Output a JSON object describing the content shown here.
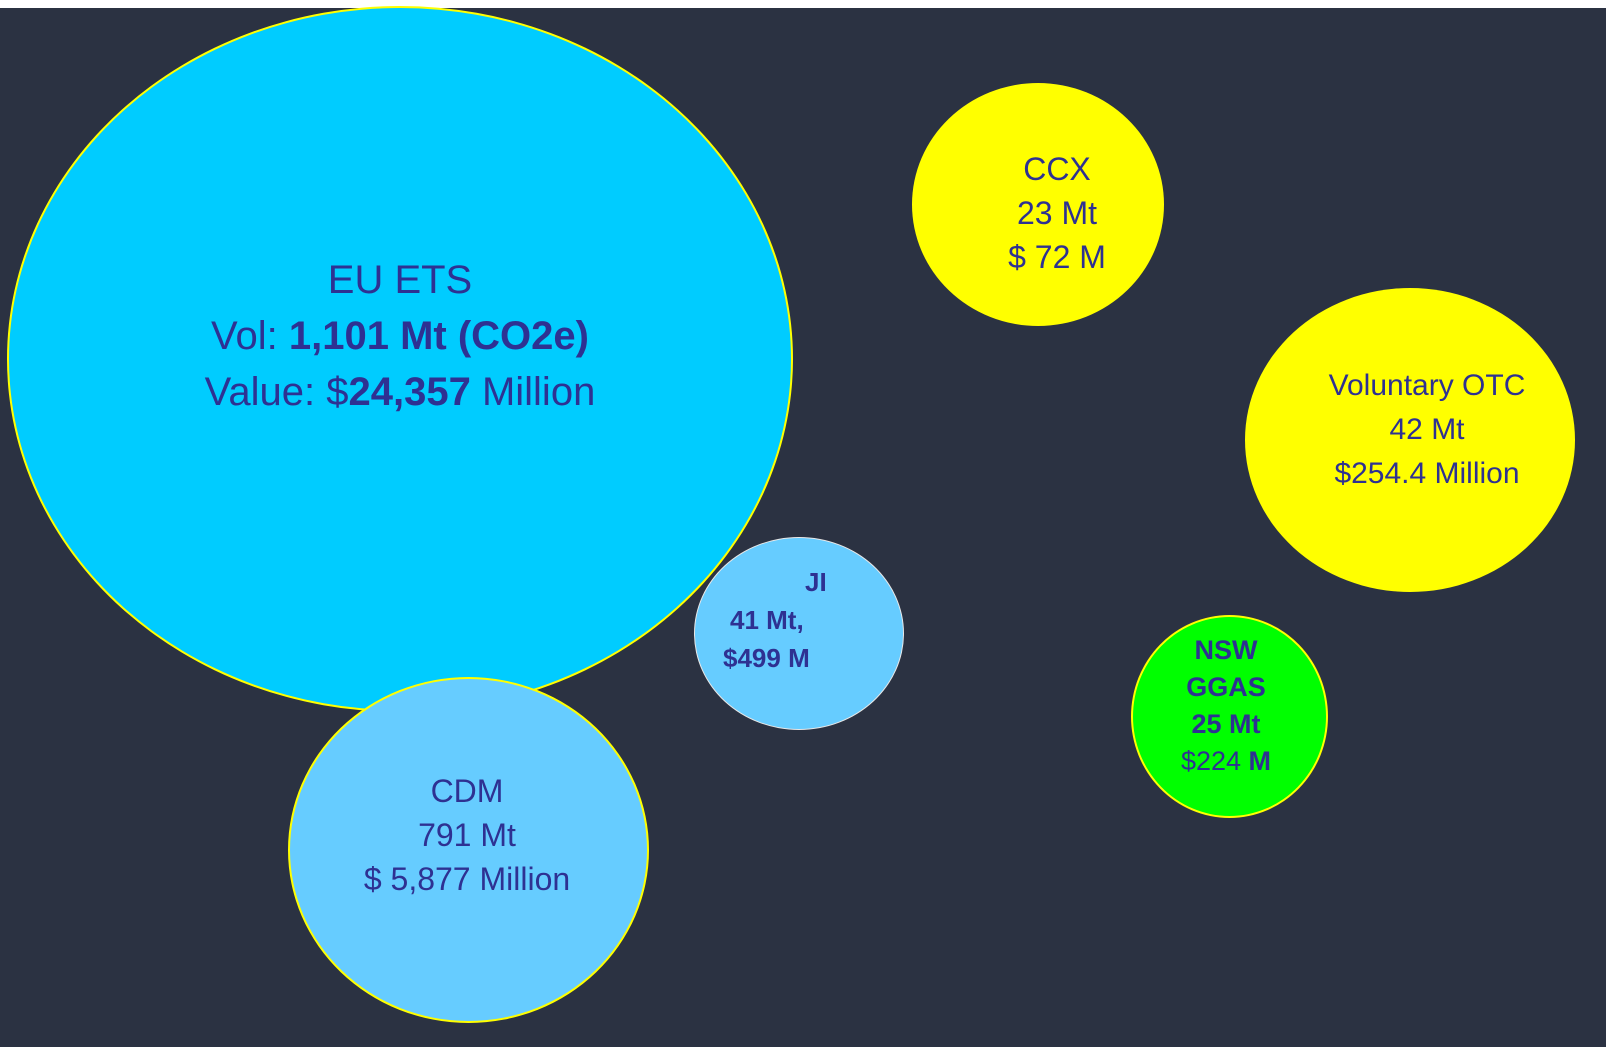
{
  "bubbles": {
    "eu_ets": {
      "name": "EU ETS",
      "vol_prefix": "Vol: ",
      "vol_value": "1,101 Mt (CO2e)",
      "value_prefix": "Value: $",
      "value_amount": "24,357",
      "value_suffix": " Million",
      "color": "#00ccff"
    },
    "ccx": {
      "name": "CCX",
      "volume": "23 Mt",
      "value": "$ 72 M",
      "color": "#ffff00"
    },
    "voluntary_otc": {
      "name": "Voluntary OTC",
      "volume": "42 Mt",
      "value": "$254.4 Million",
      "color": "#ffff00"
    },
    "ji": {
      "name": "JI",
      "volume": "41 Mt,",
      "value": "$499 M",
      "color": "#66ccff"
    },
    "nsw_ggas": {
      "name_line1": "NSW",
      "name_line2": "GGAS",
      "volume": "25 Mt",
      "value_amount": "$224",
      "value_unit": " M",
      "color": "#00ff00"
    },
    "cdm": {
      "name": "CDM",
      "volume": "791 Mt",
      "value": "$ 5,877 Million",
      "color": "#66ccff"
    }
  },
  "colors": {
    "background": "#2b3242",
    "text": "#2e3192",
    "outline": "#ffff00"
  }
}
